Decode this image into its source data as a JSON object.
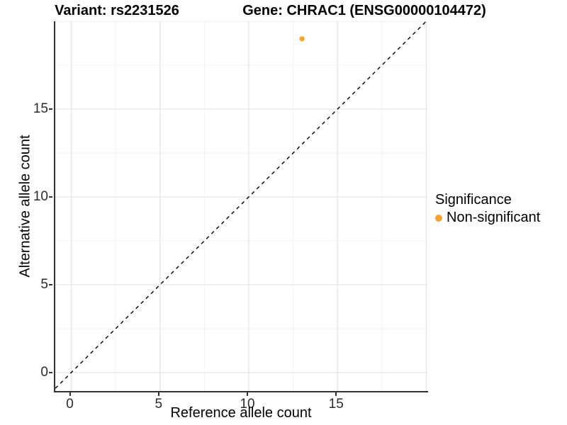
{
  "titles": {
    "left": "Variant: rs2231526",
    "right": "Gene: CHRAC1 (ENSG00000104472)"
  },
  "chart_data": {
    "type": "scatter",
    "title_left": "Variant: rs2231526",
    "title_right": "Gene: CHRAC1 (ENSG00000104472)",
    "xlabel": "Reference allele count",
    "ylabel": "Alternative allele count",
    "xlim": [
      -0.9,
      20.1
    ],
    "ylim": [
      -1.05,
      20.0
    ],
    "x_ticks": [
      0,
      5,
      10,
      15
    ],
    "y_ticks": [
      0,
      5,
      10,
      15
    ],
    "grid": {
      "x_major": [
        0,
        5,
        10,
        15,
        20
      ],
      "x_minor": [
        2.5,
        7.5,
        12.5,
        17.5
      ],
      "y_major": [
        0,
        5,
        10,
        15,
        20
      ],
      "y_minor": [
        2.5,
        7.5,
        12.5,
        17.5
      ]
    },
    "points": [
      {
        "x": 13,
        "y": 19,
        "series": "Non-significant"
      }
    ],
    "identity_line": {
      "slope": 1,
      "intercept": 0,
      "style": "dashed"
    },
    "legend": {
      "title": "Significance",
      "position": "right",
      "items": [
        {
          "label": "Non-significant",
          "color": "#F9A029"
        }
      ]
    },
    "colors": {
      "point": "#F9A029",
      "axis_line": "#333333",
      "grid_major": "#E6E6E6",
      "grid_minor": "#F2F2F2",
      "identity_line": "#000000"
    }
  }
}
